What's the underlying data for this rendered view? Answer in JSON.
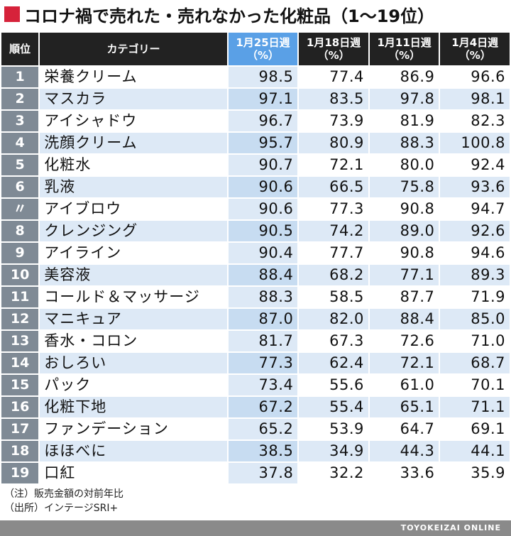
{
  "title": "コロナ禍で売れた・売れなかった化粧品（1〜19位）",
  "colors": {
    "accent": "#d6223a",
    "highlight_header": "#5aa0e6",
    "header": "#222222",
    "rank_cell": "#7f8a95",
    "stripe": "#dde9f6"
  },
  "chart_data": {
    "type": "table",
    "title": "コロナ禍で売れた・売れなかった化粧品（1〜19位）",
    "columns": [
      {
        "label": "順位"
      },
      {
        "label": "カテゴリー"
      },
      {
        "label": "1月25日週",
        "unit": "（%）",
        "highlight": true
      },
      {
        "label": "1月18日週",
        "unit": "（%）"
      },
      {
        "label": "1月11日週",
        "unit": "（%）"
      },
      {
        "label": "1月4日週",
        "unit": "（%）"
      }
    ],
    "rows": [
      {
        "rank": "1",
        "category": "栄養クリーム",
        "values": [
          "98.5",
          "77.4",
          "86.9",
          "96.6"
        ]
      },
      {
        "rank": "2",
        "category": "マスカラ",
        "values": [
          "97.1",
          "83.5",
          "97.8",
          "98.1"
        ]
      },
      {
        "rank": "3",
        "category": "アイシャドウ",
        "values": [
          "96.7",
          "73.9",
          "81.9",
          "82.3"
        ]
      },
      {
        "rank": "4",
        "category": "洗顔クリーム",
        "values": [
          "95.7",
          "80.9",
          "88.3",
          "100.8"
        ]
      },
      {
        "rank": "5",
        "category": "化粧水",
        "values": [
          "90.7",
          "72.1",
          "80.0",
          "92.4"
        ]
      },
      {
        "rank": "6",
        "category": "乳液",
        "values": [
          "90.6",
          "66.5",
          "75.8",
          "93.6"
        ]
      },
      {
        "rank": "〃",
        "category": "アイブロウ",
        "values": [
          "90.6",
          "77.3",
          "90.8",
          "94.7"
        ]
      },
      {
        "rank": "8",
        "category": "クレンジング",
        "values": [
          "90.5",
          "74.2",
          "89.0",
          "92.6"
        ]
      },
      {
        "rank": "9",
        "category": "アイライン",
        "values": [
          "90.4",
          "77.7",
          "90.8",
          "94.6"
        ]
      },
      {
        "rank": "10",
        "category": "美容液",
        "values": [
          "88.4",
          "68.2",
          "77.1",
          "89.3"
        ]
      },
      {
        "rank": "11",
        "category": "コールド＆マッサージ",
        "values": [
          "88.3",
          "58.5",
          "87.7",
          "71.9"
        ]
      },
      {
        "rank": "12",
        "category": "マニキュア",
        "values": [
          "87.0",
          "82.0",
          "88.4",
          "85.0"
        ]
      },
      {
        "rank": "13",
        "category": "香水・コロン",
        "values": [
          "81.7",
          "67.3",
          "72.6",
          "71.0"
        ]
      },
      {
        "rank": "14",
        "category": "おしろい",
        "values": [
          "77.3",
          "62.4",
          "72.1",
          "68.7"
        ]
      },
      {
        "rank": "15",
        "category": "パック",
        "values": [
          "73.4",
          "55.6",
          "61.0",
          "70.1"
        ]
      },
      {
        "rank": "16",
        "category": "化粧下地",
        "values": [
          "67.2",
          "55.4",
          "65.1",
          "71.1"
        ]
      },
      {
        "rank": "17",
        "category": "ファンデーション",
        "values": [
          "65.2",
          "53.9",
          "64.7",
          "69.1"
        ]
      },
      {
        "rank": "18",
        "category": "ほほべに",
        "values": [
          "38.5",
          "34.9",
          "44.3",
          "44.1"
        ]
      },
      {
        "rank": "19",
        "category": "口紅",
        "values": [
          "37.8",
          "32.2",
          "33.6",
          "35.9"
        ]
      }
    ]
  },
  "notes": [
    "（注）販売金額の対前年比",
    "（出所）インテージSRI+"
  ],
  "footer": "TOYOKEIZAI ONLINE"
}
